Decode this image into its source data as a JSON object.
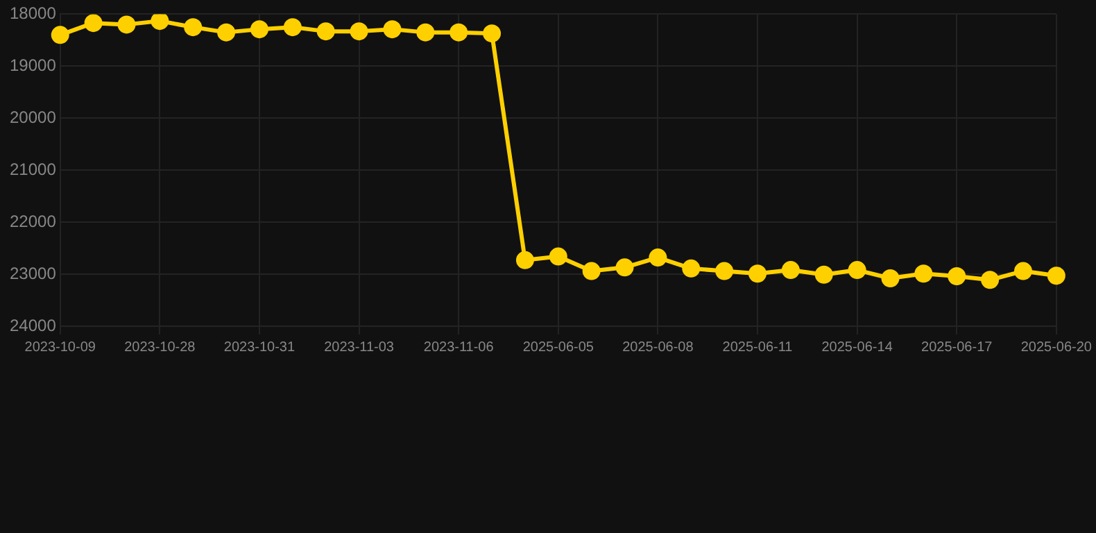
{
  "chart_data": {
    "type": "line",
    "categories": [
      "2023-10-09",
      null,
      null,
      "2023-10-28",
      null,
      null,
      "2023-10-31",
      null,
      null,
      "2023-11-03",
      null,
      null,
      "2023-11-06",
      null,
      null,
      "2025-06-05",
      null,
      null,
      "2025-06-08",
      null,
      null,
      "2025-06-11",
      null,
      null,
      "2025-06-14",
      null,
      null,
      "2025-06-17",
      null,
      null,
      "2025-06-20"
    ],
    "series": [
      {
        "color": "#ffd000",
        "values": [
          18400,
          18170,
          18200,
          18130,
          18250,
          18350,
          18290,
          18250,
          18330,
          18330,
          18290,
          18350,
          18350,
          18370,
          22730,
          22660,
          22940,
          22870,
          22680,
          22890,
          22940,
          22990,
          22920,
          23010,
          22920,
          23080,
          22990,
          23040,
          23110,
          22940,
          23030
        ]
      }
    ],
    "ylim": [
      24000,
      18000
    ],
    "yticks": [
      18000,
      19000,
      20000,
      21000,
      22000,
      23000,
      24000
    ],
    "grid": true,
    "marker": "circle",
    "line_style": "solid",
    "legend": false
  }
}
